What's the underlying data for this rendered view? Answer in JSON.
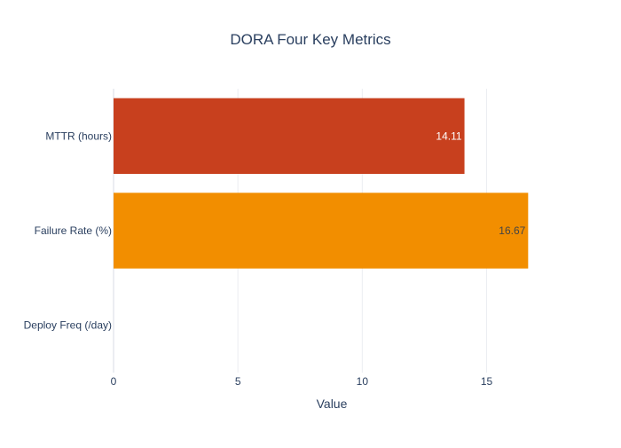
{
  "chart_data": {
    "type": "bar",
    "orientation": "horizontal",
    "title": "DORA Four Key Metrics",
    "xlabel": "Value",
    "ylabel": "",
    "xlim": [
      0,
      17.55
    ],
    "xticks": [
      0,
      5,
      10,
      15
    ],
    "grid": true,
    "legend": "none",
    "categories": [
      "MTTR (hours)",
      "Failure Rate (%)",
      "Deploy Freq (/day)"
    ],
    "values": [
      14.11,
      16.67,
      0
    ],
    "value_labels": [
      "14.11",
      "16.67",
      ""
    ],
    "colors": [
      "#c8401e",
      "#f28e00",
      "#2c7fb8"
    ],
    "label_colors": [
      "#ffffff",
      "#444444",
      "#444444"
    ]
  }
}
